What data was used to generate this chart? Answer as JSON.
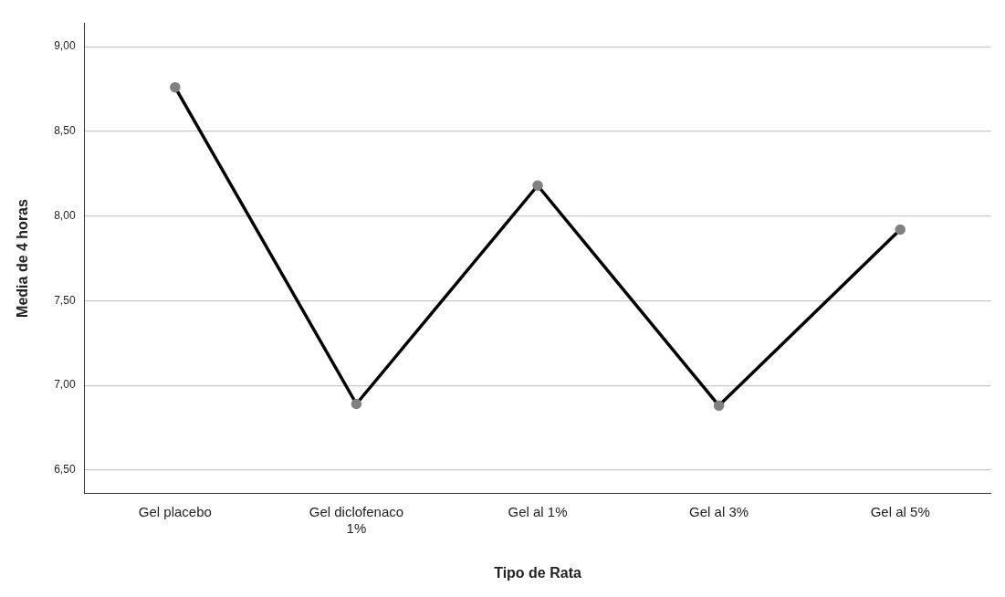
{
  "chart_data": {
    "type": "line",
    "xlabel": "Tipo de Rata",
    "ylabel": "Media de 4 horas",
    "categories": [
      "Gel placebo",
      "Gel diclofenaco 1%",
      "Gel al 1%",
      "Gel al 3%",
      "Gel al 5%"
    ],
    "series": [
      {
        "color": "#000000",
        "colors": [
          "#808080",
          "#808080",
          "#808080",
          "#808080",
          "#808080"
        ],
        "values": [
          8.76,
          6.89,
          8.18,
          6.88,
          7.92
        ]
      }
    ],
    "ylim": [
      6.36,
      9.14
    ],
    "yticks": [
      {
        "value": 6.5,
        "label": "6,50"
      },
      {
        "value": 7,
        "label": "7,00"
      },
      {
        "value": 7.5,
        "label": "7,50"
      },
      {
        "value": 8,
        "label": "8,00"
      },
      {
        "value": 8.5,
        "label": "8,50"
      },
      {
        "value": 9,
        "label": "9,00"
      }
    ],
    "grid": "y",
    "marker": "circle",
    "line_style": "solid"
  }
}
